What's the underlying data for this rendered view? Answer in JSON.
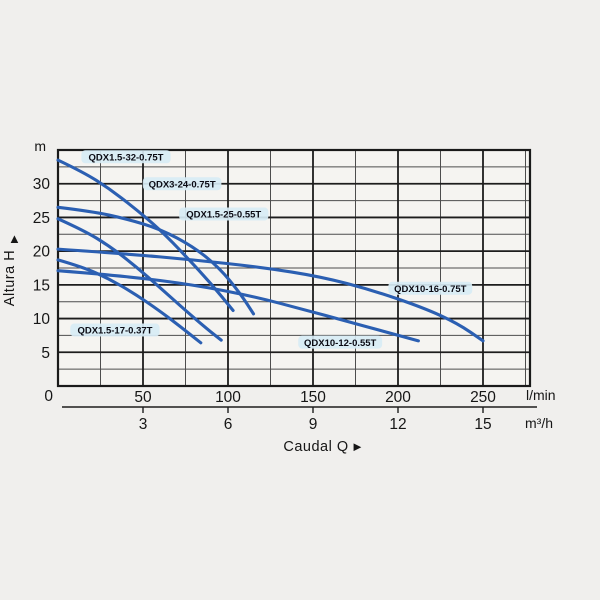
{
  "page": {
    "y_axis_title": "Altura H",
    "y_axis_arrow": "▲",
    "x_axis_title": "Caudal Q",
    "x_axis_arrow": "►",
    "unit_primary": "l/min",
    "unit_secondary": "m³/h",
    "y_axis_unit": "m"
  },
  "chart_data": {
    "type": "line",
    "title": "",
    "xlabel": "Caudal Q",
    "ylabel": "Altura H",
    "x_unit_primary": "l/min",
    "x_unit_secondary": "m3/h",
    "xlim_lmin": [
      0,
      277
    ],
    "ylim_m": [
      0,
      35
    ],
    "x_major_ticks_lmin": [
      0,
      50,
      100,
      150,
      200,
      250
    ],
    "x_minor_step_lmin": 25,
    "x_secondary_ticks_m3h": [
      3,
      6,
      9,
      12,
      15
    ],
    "y_major_ticks_m": [
      0,
      5,
      10,
      15,
      20,
      25,
      30
    ],
    "y_minor_step_m": 2.5,
    "grid": true,
    "legend_position": "inline-labels",
    "curve_color": "#2b5fb2",
    "label_bg_color": "#d7ecf5",
    "series": [
      {
        "name": "QDX1.5-32-0.75T",
        "label_at_lmin_m": [
          40,
          34.0
        ],
        "points_lmin_m": [
          [
            0,
            33.5
          ],
          [
            15,
            31.7
          ],
          [
            30,
            29.3
          ],
          [
            45,
            26.4
          ],
          [
            60,
            23.2
          ],
          [
            75,
            19.3
          ],
          [
            90,
            15.2
          ],
          [
            103,
            11.2
          ]
        ]
      },
      {
        "name": "QDX3-24-0.75T",
        "label_at_lmin_m": [
          73,
          30.0
        ],
        "points_lmin_m": [
          [
            0,
            26.5
          ],
          [
            20,
            25.9
          ],
          [
            40,
            24.8
          ],
          [
            60,
            23.3
          ],
          [
            80,
            20.6
          ],
          [
            95,
            17.5
          ],
          [
            107,
            13.8
          ],
          [
            115,
            10.7
          ]
        ]
      },
      {
        "name": "QDX1.5-25-0.55T",
        "label_at_lmin_m": [
          97.5,
          25.5
        ],
        "points_lmin_m": [
          [
            0,
            24.8
          ],
          [
            15,
            23.1
          ],
          [
            30,
            20.8
          ],
          [
            45,
            17.9
          ],
          [
            60,
            14.6
          ],
          [
            75,
            11.2
          ],
          [
            88,
            8.4
          ],
          [
            96,
            6.8
          ]
        ]
      },
      {
        "name": "QDX10-16-0.75T",
        "label_at_lmin_m": [
          219,
          14.5
        ],
        "points_lmin_m": [
          [
            0,
            20.3
          ],
          [
            40,
            19.6
          ],
          [
            80,
            18.7
          ],
          [
            120,
            17.6
          ],
          [
            155,
            16.2
          ],
          [
            185,
            14.2
          ],
          [
            215,
            11.6
          ],
          [
            235,
            9.3
          ],
          [
            250,
            6.7
          ]
        ]
      },
      {
        "name": "QDX1.5-17-0.37T",
        "label_at_lmin_m": [
          33.5,
          8.3
        ],
        "points_lmin_m": [
          [
            0,
            18.7
          ],
          [
            15,
            17.6
          ],
          [
            30,
            15.9
          ],
          [
            45,
            13.7
          ],
          [
            60,
            11.1
          ],
          [
            72,
            8.8
          ],
          [
            84,
            6.4
          ]
        ]
      },
      {
        "name": "QDX10-12-0.55T",
        "label_at_lmin_m": [
          166,
          6.5
        ],
        "points_lmin_m": [
          [
            0,
            17.1
          ],
          [
            40,
            16.3
          ],
          [
            80,
            15.0
          ],
          [
            115,
            13.3
          ],
          [
            145,
            11.3
          ],
          [
            170,
            9.6
          ],
          [
            190,
            8.2
          ],
          [
            212,
            6.7
          ]
        ]
      }
    ]
  }
}
